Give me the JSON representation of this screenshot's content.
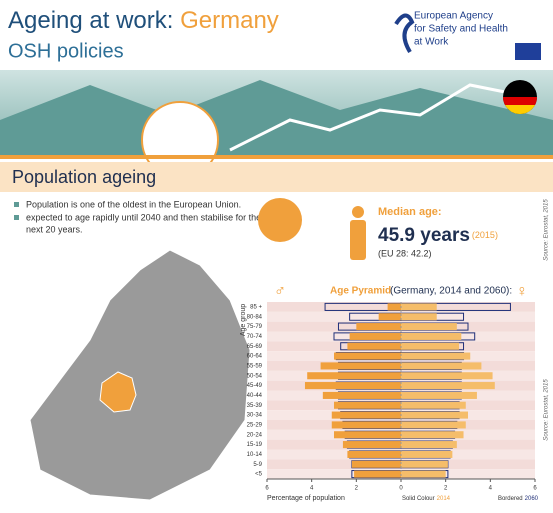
{
  "header": {
    "title": "Ageing at work: ",
    "country": "Germany",
    "subtitle": "OSH policies",
    "agency": [
      "European Agency",
      "for Safety and Health",
      "at Work"
    ]
  },
  "section": {
    "title": "Population ageing",
    "bullets": [
      "Population is one of the oldest in the European Union.",
      "expected to age rapidly until 2040 and then stabilise for the",
      "next 20 years."
    ]
  },
  "median": {
    "label": "Median age:",
    "value": "45.9 years",
    "year": "(2015)",
    "eu": "(EU 28: 42.2)",
    "source": "Source: Eurostat, 2015"
  },
  "chart_data": {
    "type": "pyramid",
    "title": "Age Pyramid",
    "subtitle": "(Germany, 2014 and 2060):",
    "y_label": "Age group",
    "x_label": "Percentage of population",
    "male_symbol": "♂",
    "female_symbol": "♀",
    "source": "Source: Eurostat, 2015",
    "categories": [
      "85 +",
      "80-84",
      "75-79",
      "70-74",
      "65-69",
      "60-64",
      "55-59",
      "50-54",
      "45-49",
      "40-44",
      "35-39",
      "30-34",
      "25-29",
      "20-24",
      "15-19",
      "10-14",
      "5-9",
      "<5"
    ],
    "series": [
      {
        "name": "2014",
        "legend": "Solid Colour",
        "color": "#f0a03c",
        "female_color": "#f5bd6a",
        "male": [
          -0.6,
          -1.0,
          -2.0,
          -2.3,
          -2.4,
          -3.0,
          -3.6,
          -4.2,
          -4.3,
          -3.5,
          -3.0,
          -3.1,
          -3.1,
          -3.0,
          -2.6,
          -2.4,
          -2.2,
          -2.1
        ],
        "female": [
          1.6,
          1.6,
          2.5,
          2.7,
          2.6,
          3.1,
          3.6,
          4.1,
          4.2,
          3.4,
          2.9,
          3.0,
          2.9,
          2.8,
          2.5,
          2.3,
          2.1,
          2.0
        ]
      },
      {
        "name": "2060",
        "legend": "Bordered",
        "color": "#1f2f78",
        "male": [
          -3.4,
          -2.3,
          -2.8,
          -3.0,
          -2.7,
          -2.9,
          -2.8,
          -2.8,
          -2.9,
          -2.8,
          -2.8,
          -2.7,
          -2.6,
          -2.5,
          -2.4,
          -2.3,
          -2.2,
          -2.2
        ],
        "female": [
          4.9,
          2.8,
          3.0,
          3.3,
          2.8,
          2.8,
          2.7,
          2.7,
          2.7,
          2.7,
          2.6,
          2.6,
          2.5,
          2.4,
          2.3,
          2.2,
          2.1,
          2.1
        ]
      }
    ],
    "xlim": [
      -6,
      6
    ],
    "xticks": [
      {
        "value": -6,
        "label": "6"
      },
      {
        "value": -4,
        "label": "4"
      },
      {
        "value": -2,
        "label": "2"
      },
      0,
      2,
      4,
      6
    ]
  }
}
